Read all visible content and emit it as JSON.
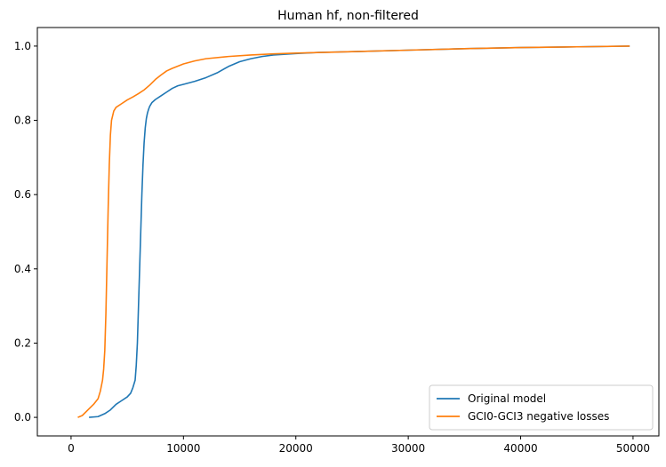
{
  "chart_data": {
    "type": "line",
    "title": "Human hf, non-filtered",
    "xlabel": "",
    "ylabel": "",
    "xlim": [
      -3000,
      52300
    ],
    "ylim": [
      -0.05,
      1.05
    ],
    "xticks": [
      0,
      10000,
      20000,
      30000,
      40000,
      50000
    ],
    "yticks": [
      0.0,
      0.2,
      0.4,
      0.6,
      0.8,
      1.0
    ],
    "xtick_labels": [
      "0",
      "10000",
      "20000",
      "30000",
      "40000",
      "50000"
    ],
    "ytick_labels": [
      "0.0",
      "0.2",
      "0.4",
      "0.6",
      "0.8",
      "1.0"
    ],
    "grid": false,
    "legend_position": "lower-right",
    "series": [
      {
        "name": "Original model",
        "color": "#1f77b4",
        "x": [
          1600,
          2400,
          3000,
          3500,
          4000,
          4500,
          5000,
          5300,
          5500,
          5700,
          5800,
          5900,
          6000,
          6100,
          6200,
          6300,
          6400,
          6500,
          6600,
          6700,
          6800,
          6900,
          7000,
          7200,
          7500,
          8000,
          8500,
          9000,
          9500,
          10000,
          11000,
          12000,
          13000,
          14000,
          15000,
          16000,
          17000,
          18000,
          20000,
          22000,
          25000,
          30000,
          35000,
          40000,
          45000,
          49700
        ],
        "y": [
          0.0,
          0.002,
          0.01,
          0.02,
          0.035,
          0.045,
          0.055,
          0.065,
          0.08,
          0.1,
          0.14,
          0.2,
          0.3,
          0.4,
          0.5,
          0.6,
          0.68,
          0.74,
          0.78,
          0.805,
          0.82,
          0.83,
          0.838,
          0.848,
          0.856,
          0.866,
          0.876,
          0.886,
          0.893,
          0.897,
          0.905,
          0.915,
          0.928,
          0.945,
          0.958,
          0.966,
          0.972,
          0.976,
          0.98,
          0.983,
          0.985,
          0.989,
          0.993,
          0.996,
          0.998,
          1.0
        ]
      },
      {
        "name": "GCI0-GCI3 negative losses",
        "color": "#ff7f0e",
        "x": [
          600,
          1000,
          1500,
          2000,
          2400,
          2600,
          2800,
          2900,
          3000,
          3100,
          3200,
          3300,
          3400,
          3500,
          3600,
          3800,
          4000,
          4500,
          5000,
          5500,
          6000,
          6500,
          7000,
          7500,
          8000,
          8500,
          9000,
          10000,
          11000,
          12000,
          14000,
          16000,
          18000,
          20000,
          25000,
          30000,
          35000,
          40000,
          45000,
          49700
        ],
        "y": [
          0.0,
          0.005,
          0.02,
          0.035,
          0.05,
          0.07,
          0.1,
          0.13,
          0.18,
          0.28,
          0.42,
          0.56,
          0.68,
          0.76,
          0.8,
          0.825,
          0.835,
          0.845,
          0.855,
          0.863,
          0.872,
          0.882,
          0.895,
          0.91,
          0.922,
          0.933,
          0.94,
          0.952,
          0.96,
          0.966,
          0.972,
          0.976,
          0.979,
          0.981,
          0.985,
          0.989,
          0.993,
          0.996,
          0.998,
          1.0
        ]
      }
    ]
  }
}
